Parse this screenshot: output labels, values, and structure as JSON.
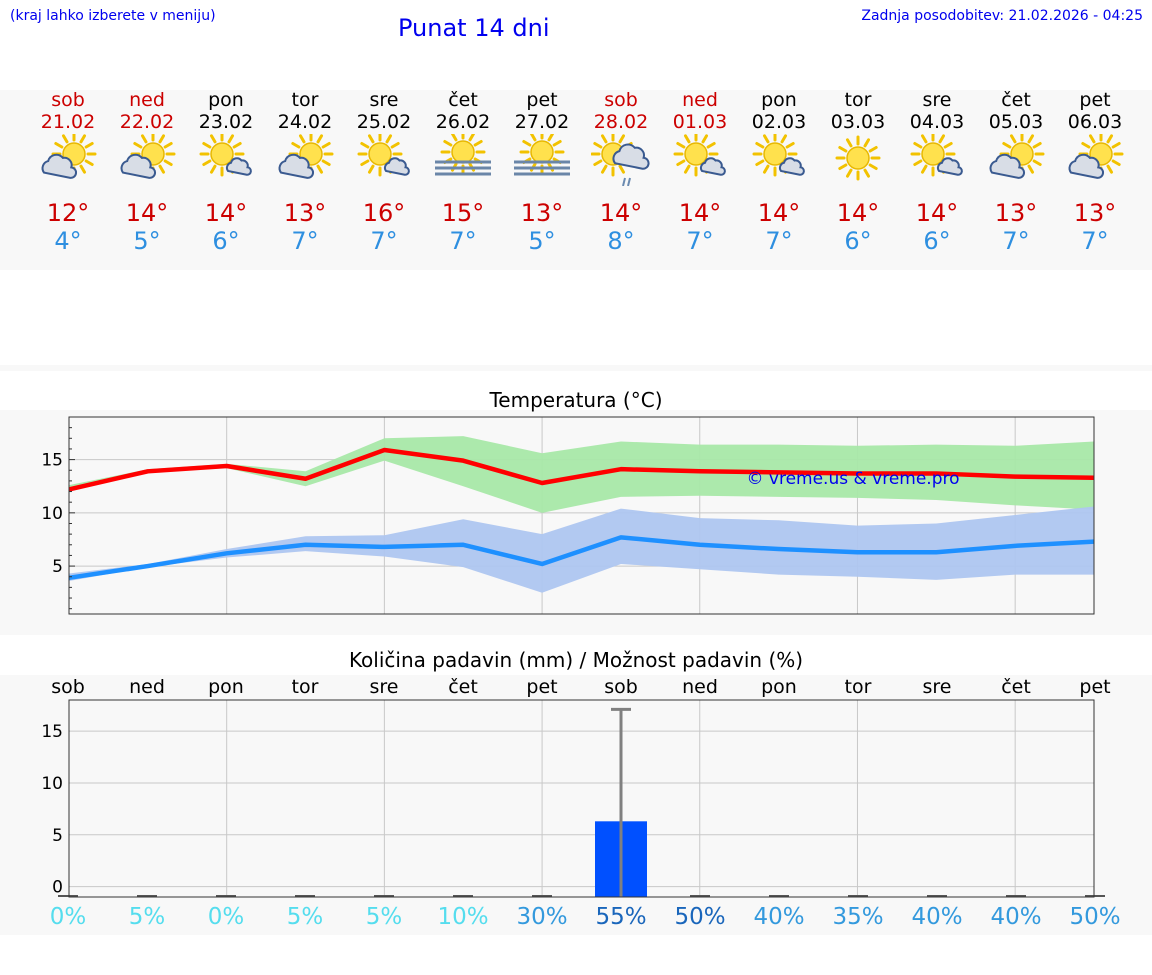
{
  "header": {
    "hint": "(kraj lahko izberete v meniju)",
    "title": "Punat 14 dni",
    "updated": "Zadnja posodobitev: 21.02.2026 - 04:25"
  },
  "days": [
    {
      "name": "sob",
      "date": "21.02",
      "weekend": true,
      "icon": "sun-cloud",
      "max": "12°",
      "min": "4°"
    },
    {
      "name": "ned",
      "date": "22.02",
      "weekend": true,
      "icon": "sun-cloud",
      "max": "14°",
      "min": "5°"
    },
    {
      "name": "pon",
      "date": "23.02",
      "weekend": false,
      "icon": "sun-small-cloud",
      "max": "14°",
      "min": "6°"
    },
    {
      "name": "tor",
      "date": "24.02",
      "weekend": false,
      "icon": "sun-cloud",
      "max": "13°",
      "min": "7°"
    },
    {
      "name": "sre",
      "date": "25.02",
      "weekend": false,
      "icon": "sun-small-cloud",
      "max": "16°",
      "min": "7°"
    },
    {
      "name": "čet",
      "date": "26.02",
      "weekend": false,
      "icon": "sun-fog",
      "max": "15°",
      "min": "7°"
    },
    {
      "name": "pet",
      "date": "27.02",
      "weekend": false,
      "icon": "sun-fog",
      "max": "13°",
      "min": "5°"
    },
    {
      "name": "sob",
      "date": "28.02",
      "weekend": true,
      "icon": "sun-rain",
      "max": "14°",
      "min": "8°"
    },
    {
      "name": "ned",
      "date": "01.03",
      "weekend": true,
      "icon": "sun-small-cloud",
      "max": "14°",
      "min": "7°"
    },
    {
      "name": "pon",
      "date": "02.03",
      "weekend": false,
      "icon": "sun-small-cloud",
      "max": "14°",
      "min": "7°"
    },
    {
      "name": "tor",
      "date": "03.03",
      "weekend": false,
      "icon": "sun",
      "max": "14°",
      "min": "6°"
    },
    {
      "name": "sre",
      "date": "04.03",
      "weekend": false,
      "icon": "sun-small-cloud",
      "max": "14°",
      "min": "6°"
    },
    {
      "name": "čet",
      "date": "05.03",
      "weekend": false,
      "icon": "sun-cloud",
      "max": "13°",
      "min": "7°"
    },
    {
      "name": "pet",
      "date": "06.03",
      "weekend": false,
      "icon": "sun-cloud",
      "max": "13°",
      "min": "7°"
    }
  ],
  "chart_data": [
    {
      "type": "line",
      "title": "Temperatura (°C)",
      "watermark": "© vreme.us & vreme.pro",
      "ylim": [
        0.5,
        19
      ],
      "yticks": [
        5,
        10,
        15
      ],
      "x": [
        0,
        1,
        2,
        3,
        4,
        5,
        6,
        7,
        8,
        9,
        10,
        11,
        12,
        13
      ],
      "series": [
        {
          "name": "max",
          "color": "#ff0000",
          "values": [
            12.2,
            13.9,
            14.4,
            13.2,
            15.9,
            14.9,
            12.8,
            14.1,
            13.9,
            13.8,
            13.7,
            13.7,
            13.4,
            13.3
          ],
          "band_low": [
            12.0,
            13.8,
            14.2,
            12.5,
            14.9,
            12.5,
            10.0,
            11.5,
            11.6,
            11.5,
            11.4,
            11.2,
            10.7,
            10.3
          ],
          "band_high": [
            12.6,
            14.1,
            14.6,
            13.9,
            17.0,
            17.2,
            15.6,
            16.7,
            16.4,
            16.4,
            16.3,
            16.4,
            16.3,
            16.7
          ],
          "band_color": "#a8e8a8"
        },
        {
          "name": "min",
          "color": "#1e90ff",
          "values": [
            3.9,
            5.0,
            6.2,
            7.0,
            6.8,
            7.0,
            5.2,
            7.7,
            7.0,
            6.6,
            6.3,
            6.3,
            6.9,
            7.3
          ],
          "band_low": [
            3.6,
            4.9,
            5.8,
            6.4,
            5.9,
            4.9,
            2.5,
            5.2,
            4.7,
            4.2,
            4.0,
            3.7,
            4.2,
            4.2
          ],
          "band_high": [
            4.3,
            5.2,
            6.6,
            7.8,
            7.9,
            9.4,
            8.0,
            10.4,
            9.5,
            9.3,
            8.8,
            9.0,
            9.8,
            10.6
          ],
          "band_color": "#aec6f0"
        }
      ]
    },
    {
      "type": "bar",
      "title": "Količina padavin (mm) / Možnost padavin (%)",
      "ylim": [
        -1,
        18
      ],
      "yticks": [
        0,
        5,
        10,
        15
      ],
      "categories": [
        "sob",
        "ned",
        "pon",
        "tor",
        "sre",
        "čet",
        "pet",
        "sob",
        "ned",
        "pon",
        "tor",
        "sre",
        "čet",
        "pet"
      ],
      "values": [
        0,
        0,
        0,
        0,
        0,
        0,
        0,
        6.3,
        0,
        0,
        0,
        0,
        0,
        0
      ],
      "error_high": [
        0,
        0,
        0,
        0,
        0,
        0,
        0,
        17.1,
        0,
        0,
        0,
        0,
        0,
        0
      ],
      "bar_color": "#0050ff",
      "probability": [
        "0%",
        "5%",
        "0%",
        "5%",
        "5%",
        "10%",
        "30%",
        "55%",
        "50%",
        "40%",
        "35%",
        "40%",
        "40%",
        "50%"
      ],
      "probability_colors": [
        "#55ddee",
        "#55ddee",
        "#55ddee",
        "#55ddee",
        "#55ddee",
        "#55ddee",
        "#3399dd",
        "#1a66bb",
        "#1a66bb",
        "#3399dd",
        "#3399dd",
        "#3399dd",
        "#3399dd",
        "#3399dd"
      ]
    }
  ]
}
